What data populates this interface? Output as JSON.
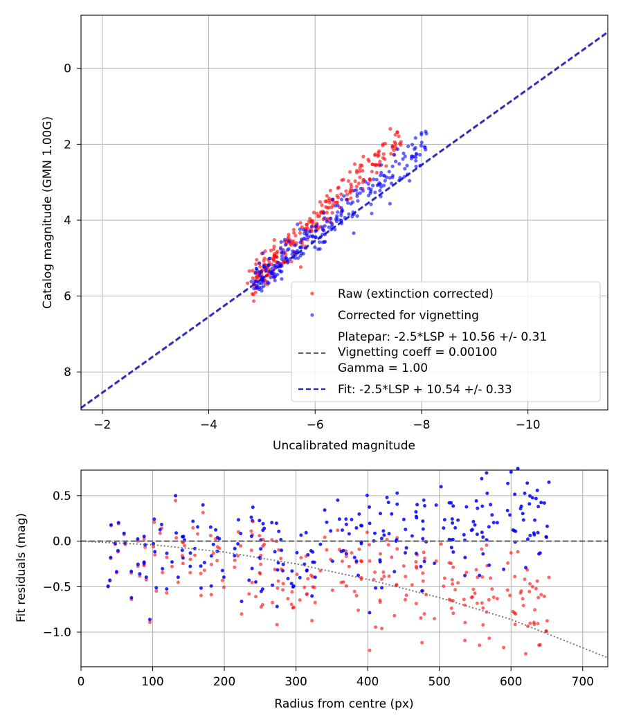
{
  "chart_data": [
    {
      "type": "scatter",
      "xlabel": "Uncalibrated magnitude",
      "ylabel": "Catalog magnitude (GMN 1.00G)",
      "xlim": [
        -1.6,
        -11.5
      ],
      "ylim": [
        -1.4,
        9.0
      ],
      "y_inverted": true,
      "x_ticks": [
        -2,
        -4,
        -6,
        -8,
        -10
      ],
      "x_tick_labels": [
        "−2",
        "−4",
        "−6",
        "−8",
        "−10"
      ],
      "y_ticks": [
        0,
        2,
        4,
        6,
        8
      ],
      "y_tick_labels": [
        "0",
        "2",
        "4",
        "6",
        "8"
      ],
      "grid": true,
      "legend_position": "lower-right",
      "colors": {
        "raw": "#ff0000",
        "corrected": "#0000ff",
        "platepar": "#666666",
        "fit": "#2222cc"
      },
      "series": [
        {
          "name": "Raw (extinction corrected)",
          "kind": "points",
          "color": "#ff0000",
          "x_range": [
            -4.9,
            -7.6
          ],
          "y_at_x_min": 5.55,
          "y_at_x_max": 1.8,
          "scatter_sd": 0.22,
          "count": 260
        },
        {
          "name": "Corrected for vignetting",
          "kind": "points",
          "color": "#0000ff",
          "x_range": [
            -4.9,
            -8.1
          ],
          "y_at_x_min": 5.6,
          "y_at_x_max": 2.05,
          "scatter_sd": 0.25,
          "count": 260
        },
        {
          "name": "Platepar line",
          "kind": "line",
          "style": "dashed",
          "color": "#666666",
          "slope": 1.0,
          "intercept": 10.56
        },
        {
          "name": "Fit line",
          "kind": "line",
          "style": "dashed",
          "color": "#2222cc",
          "slope": 1.0,
          "intercept": 10.54
        }
      ],
      "legend": {
        "raw": "Raw (extinction corrected)",
        "corrected": "Corrected for vignetting",
        "platepar_lines": [
          "Platepar: -2.5*LSP + 10.56 +/- 0.31",
          "Vignetting coeff = 0.00100",
          "Gamma = 1.00"
        ],
        "fit": "Fit: -2.5*LSP + 10.54 +/- 0.33"
      }
    },
    {
      "type": "scatter",
      "xlabel": "Radius from centre (px)",
      "ylabel": "Fit residuals (mag)",
      "xlim": [
        0,
        735
      ],
      "ylim": [
        -1.38,
        0.78
      ],
      "x_ticks": [
        0,
        100,
        200,
        300,
        400,
        500,
        600,
        700
      ],
      "x_tick_labels": [
        "0",
        "100",
        "200",
        "300",
        "400",
        "500",
        "600",
        "700"
      ],
      "y_ticks": [
        0.5,
        0.0,
        -0.5,
        -1.0
      ],
      "y_tick_labels": [
        "0.5",
        "0.0",
        "−0.5",
        "−1.0"
      ],
      "grid": true,
      "series": [
        {
          "name": "Raw residuals",
          "kind": "points",
          "color": "#ff0000",
          "x_range": [
            33,
            653
          ],
          "trend": "vignetting-curve",
          "scatter_sd": 0.28,
          "count": 260
        },
        {
          "name": "Corrected residuals",
          "kind": "points",
          "color": "#0000ff",
          "x_range": [
            33,
            653
          ],
          "trend": "flat-rising",
          "scatter_sd": 0.28,
          "count": 260
        },
        {
          "name": "Zero line",
          "kind": "line",
          "style": "dashed",
          "color": "#666666",
          "y": 0.0
        },
        {
          "name": "Vignetting model",
          "kind": "curve",
          "style": "dotted",
          "color": "#777777",
          "coeff": 0.001,
          "points": [
            [
              0,
              0.0
            ],
            [
              100,
              -0.04
            ],
            [
              200,
              -0.12
            ],
            [
              300,
              -0.25
            ],
            [
              400,
              -0.42
            ],
            [
              500,
              -0.62
            ],
            [
              600,
              -0.86
            ],
            [
              735,
              -1.28
            ]
          ]
        }
      ]
    }
  ]
}
